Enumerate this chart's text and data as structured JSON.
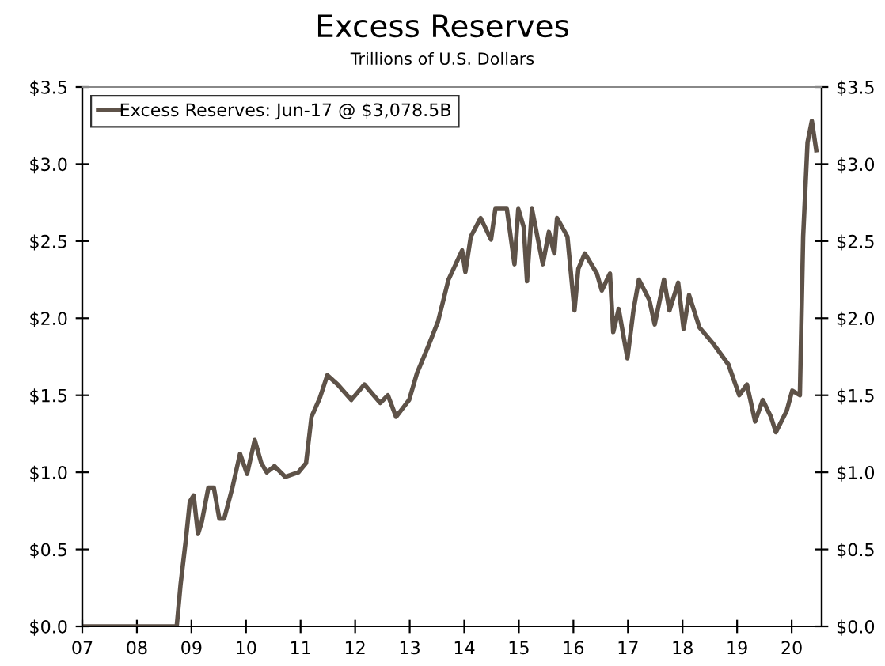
{
  "chart_data": {
    "type": "line",
    "title": "Excess Reserves",
    "subtitle": "Trillions of U.S. Dollars",
    "series": [
      {
        "name": "Excess Reserves: Jun-17 @ $3,078.5B",
        "color": "#5e5248",
        "x": [
          2007.0,
          2007.5,
          2008.0,
          2008.5,
          2008.73,
          2008.8,
          2008.9,
          2008.97,
          2009.04,
          2009.12,
          2009.19,
          2009.31,
          2009.41,
          2009.51,
          2009.6,
          2009.75,
          2009.89,
          2010.02,
          2010.16,
          2010.28,
          2010.38,
          2010.52,
          2010.72,
          2010.96,
          2011.1,
          2011.2,
          2011.35,
          2011.49,
          2011.68,
          2011.93,
          2012.17,
          2012.46,
          2012.6,
          2012.75,
          2012.99,
          2013.13,
          2013.33,
          2013.52,
          2013.71,
          2013.96,
          2014.02,
          2014.12,
          2014.3,
          2014.49,
          2014.57,
          2014.78,
          2014.92,
          2014.99,
          2015.09,
          2015.15,
          2015.24,
          2015.44,
          2015.55,
          2015.65,
          2015.7,
          2015.89,
          2016.02,
          2016.09,
          2016.21,
          2016.43,
          2016.52,
          2016.67,
          2016.73,
          2016.83,
          2016.99,
          2017.1,
          2017.2,
          2017.39,
          2017.49,
          2017.66,
          2017.76,
          2017.92,
          2018.02,
          2018.12,
          2018.31,
          2018.55,
          2018.84,
          2019.04,
          2019.18,
          2019.33,
          2019.47,
          2019.62,
          2019.71,
          2019.91,
          2020.01,
          2020.15,
          2020.21,
          2020.29,
          2020.37,
          2020.45
        ],
        "values": [
          0.0,
          0.0,
          0.0,
          0.0,
          0.0,
          0.27,
          0.57,
          0.81,
          0.85,
          0.6,
          0.68,
          0.9,
          0.9,
          0.7,
          0.7,
          0.9,
          1.12,
          0.99,
          1.21,
          1.06,
          1.0,
          1.04,
          0.97,
          1.0,
          1.06,
          1.36,
          1.48,
          1.63,
          1.57,
          1.47,
          1.57,
          1.45,
          1.5,
          1.36,
          1.47,
          1.64,
          1.81,
          1.98,
          2.25,
          2.44,
          2.3,
          2.53,
          2.65,
          2.51,
          2.71,
          2.71,
          2.35,
          2.71,
          2.59,
          2.24,
          2.71,
          2.35,
          2.56,
          2.42,
          2.65,
          2.53,
          2.05,
          2.32,
          2.42,
          2.29,
          2.18,
          2.29,
          1.91,
          2.06,
          1.74,
          2.05,
          2.25,
          2.12,
          1.96,
          2.25,
          2.05,
          2.23,
          1.93,
          2.15,
          1.94,
          1.84,
          1.7,
          1.5,
          1.57,
          1.33,
          1.47,
          1.36,
          1.26,
          1.4,
          1.53,
          1.5,
          2.53,
          3.14,
          3.28,
          3.09
        ]
      }
    ],
    "xlim": [
      2007,
      2020.55
    ],
    "xticks": [
      {
        "value": 2007,
        "label": "07"
      },
      {
        "value": 2008,
        "label": "08"
      },
      {
        "value": 2009,
        "label": "09"
      },
      {
        "value": 2010,
        "label": "10"
      },
      {
        "value": 2011,
        "label": "11"
      },
      {
        "value": 2012,
        "label": "12"
      },
      {
        "value": 2013,
        "label": "13"
      },
      {
        "value": 2014,
        "label": "14"
      },
      {
        "value": 2015,
        "label": "15"
      },
      {
        "value": 2016,
        "label": "16"
      },
      {
        "value": 2017,
        "label": "17"
      },
      {
        "value": 2018,
        "label": "18"
      },
      {
        "value": 2019,
        "label": "19"
      },
      {
        "value": 2020,
        "label": "20"
      }
    ],
    "ylim": [
      0,
      3.5
    ],
    "yticks": [
      {
        "value": 0,
        "label": "$0.0"
      },
      {
        "value": 0.5,
        "label": "$0.5"
      },
      {
        "value": 1.0,
        "label": "$1.0"
      },
      {
        "value": 1.5,
        "label": "$1.5"
      },
      {
        "value": 2.0,
        "label": "$2.0"
      },
      {
        "value": 2.5,
        "label": "$2.5"
      },
      {
        "value": 3.0,
        "label": "$3.0"
      },
      {
        "value": 3.5,
        "label": "$3.5"
      }
    ],
    "y2lim": [
      0,
      3.5
    ],
    "y2ticks": [
      {
        "value": 0,
        "label": "$0.0"
      },
      {
        "value": 0.5,
        "label": "$0.5"
      },
      {
        "value": 1.0,
        "label": "$1.0"
      },
      {
        "value": 1.5,
        "label": "$1.5"
      },
      {
        "value": 2.0,
        "label": "$2.0"
      },
      {
        "value": 2.5,
        "label": "$2.5"
      },
      {
        "value": 3.0,
        "label": "$3.0"
      },
      {
        "value": 3.5,
        "label": "$3.5"
      }
    ],
    "grid": false,
    "legend": "top left",
    "line_style": "solid",
    "marker": "none"
  }
}
